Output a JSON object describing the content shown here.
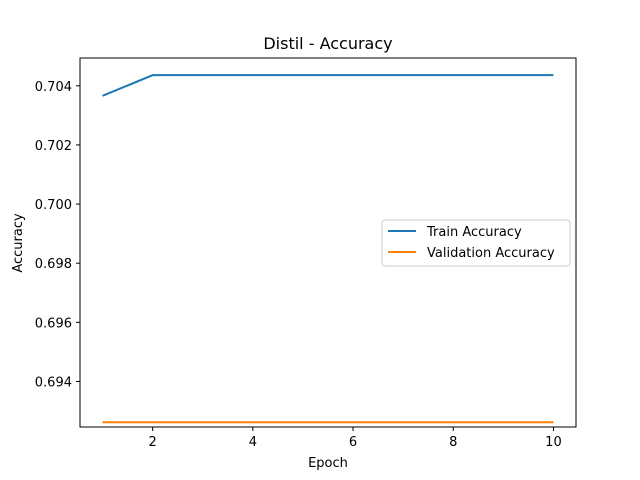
{
  "chart_data": {
    "type": "line",
    "title": "Distil - Accuracy",
    "xlabel": "Epoch",
    "ylabel": "Accuracy",
    "x": [
      1,
      2,
      3,
      4,
      5,
      6,
      7,
      8,
      9,
      10
    ],
    "xticks": [
      "2",
      "4",
      "6",
      "8",
      "10"
    ],
    "yticks": [
      "0.694",
      "0.696",
      "0.698",
      "0.700",
      "0.702",
      "0.704"
    ],
    "xlim": [
      0.55,
      10.45
    ],
    "ylim": [
      0.69246,
      0.70494
    ],
    "grid": false,
    "legend_position": "center-right",
    "series": [
      {
        "name": "Train Accuracy",
        "color": "#1f77b4",
        "values": [
          0.70366,
          0.70436,
          0.70436,
          0.70436,
          0.70436,
          0.70436,
          0.70436,
          0.70436,
          0.70436,
          0.70436
        ]
      },
      {
        "name": "Validation Accuracy",
        "color": "#ff7f0e",
        "values": [
          0.69262,
          0.69262,
          0.69262,
          0.69262,
          0.69262,
          0.69262,
          0.69262,
          0.69262,
          0.69262,
          0.69262
        ]
      }
    ]
  }
}
